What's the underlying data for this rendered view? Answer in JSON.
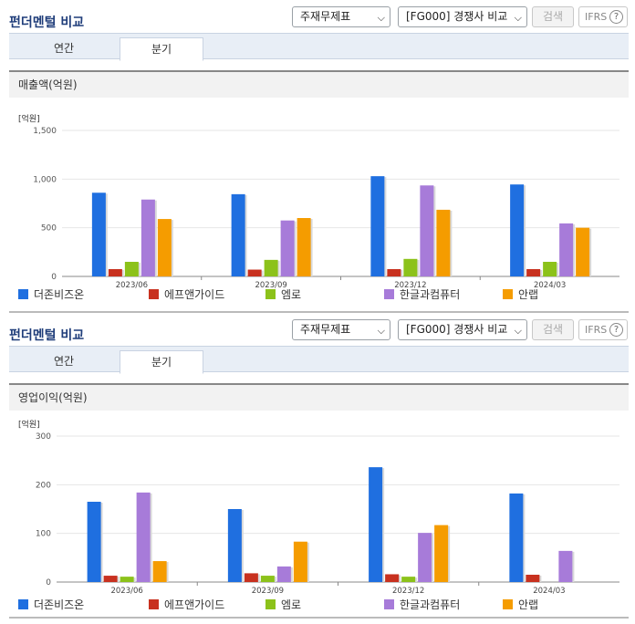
{
  "panels": [
    {
      "title": "펀더멘털 비교",
      "select1": "주재무제표",
      "select2": "[FG000] 경쟁사 비교",
      "search_label": "검색",
      "ifrs_label": "IFRS",
      "tabs": [
        "연간",
        "분기"
      ],
      "active_tab": 1,
      "metric_label": "매출액(억원)"
    },
    {
      "title": "펀더멘털 비교",
      "select1": "주재무제표",
      "select2": "[FG000] 경쟁사 비교",
      "search_label": "검색",
      "ifrs_label": "IFRS",
      "tabs": [
        "연간",
        "분기"
      ],
      "active_tab": 1,
      "metric_label": "영업이익(억원)"
    }
  ],
  "chart_data": [
    {
      "type": "bar",
      "unit_label": "[억원]",
      "categories": [
        "2023/06",
        "2023/09",
        "2023/12",
        "2024/03"
      ],
      "ylim": [
        0,
        1500
      ],
      "yticks": [
        "0",
        "500",
        "1,000",
        "1,500"
      ],
      "ytick_values": [
        0,
        500,
        1000,
        1500
      ],
      "series": [
        {
          "name": "더존비즈온",
          "color": "#1f6fe0",
          "values": [
            860,
            845,
            1030,
            945
          ]
        },
        {
          "name": "에프앤가이드",
          "color": "#c8311f",
          "values": [
            75,
            70,
            75,
            75
          ]
        },
        {
          "name": "엠로",
          "color": "#8cc21a",
          "values": [
            150,
            170,
            180,
            150
          ]
        },
        {
          "name": "한글과컴퓨터",
          "color": "#a77bd9",
          "values": [
            790,
            575,
            935,
            545
          ]
        },
        {
          "name": "안랩",
          "color": "#f59c00",
          "values": [
            590,
            600,
            685,
            500
          ]
        }
      ]
    },
    {
      "type": "bar",
      "unit_label": "[억원]",
      "categories": [
        "2023/06",
        "2023/09",
        "2023/12",
        "2024/03"
      ],
      "ylim": [
        0,
        300
      ],
      "yticks": [
        "0",
        "100",
        "200",
        "300"
      ],
      "ytick_values": [
        0,
        100,
        200,
        300
      ],
      "series": [
        {
          "name": "더존비즈온",
          "color": "#1f6fe0",
          "values": [
            165,
            150,
            236,
            182
          ]
        },
        {
          "name": "에프앤가이드",
          "color": "#c8311f",
          "values": [
            13,
            18,
            16,
            15
          ]
        },
        {
          "name": "엠로",
          "color": "#8cc21a",
          "values": [
            11,
            13,
            11,
            null
          ]
        },
        {
          "name": "한글과컴퓨터",
          "color": "#a77bd9",
          "values": [
            184,
            32,
            101,
            64
          ]
        },
        {
          "name": "안랩",
          "color": "#f59c00",
          "values": [
            43,
            83,
            117,
            null
          ]
        }
      ]
    }
  ]
}
